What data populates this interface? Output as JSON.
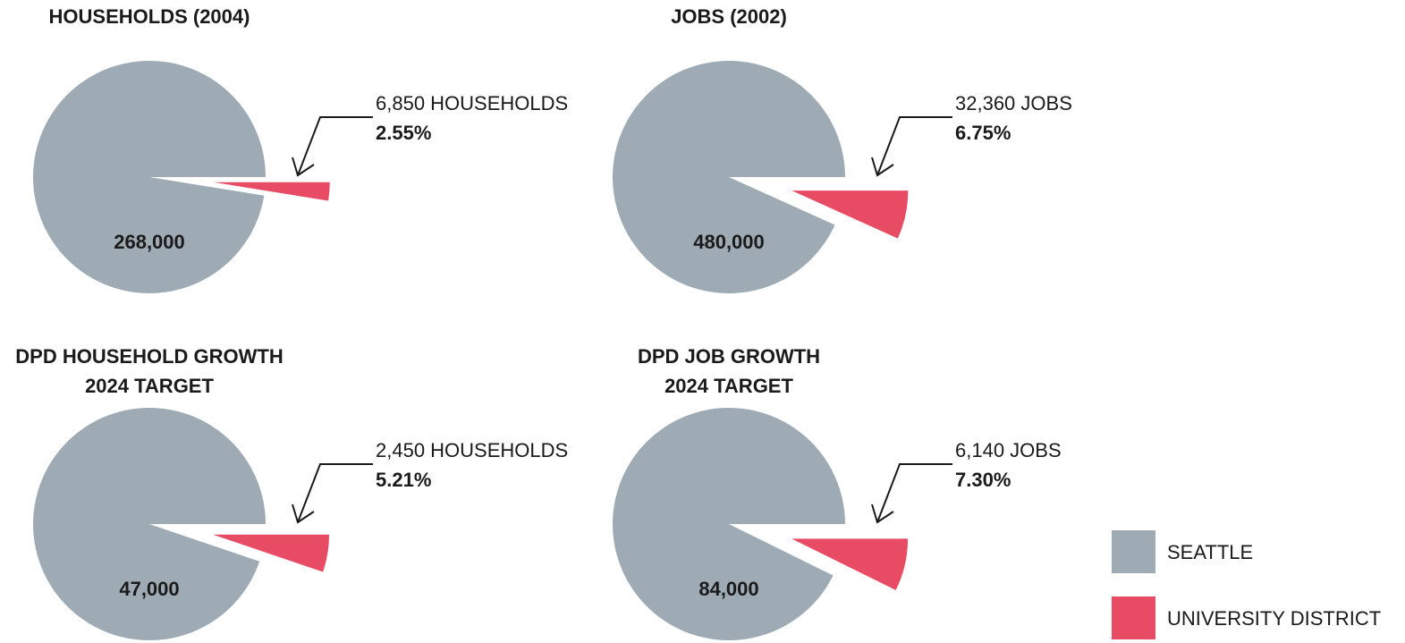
{
  "chart_data": [
    {
      "type": "pie",
      "title": [
        "HOUSEHOLDS (2004)"
      ],
      "categories": [
        "SEATTLE",
        "UNIVERSITY DISTRICT"
      ],
      "colors": [
        "#9eabb4",
        "#e84c64"
      ],
      "values": [
        268000,
        6850
      ],
      "value_labels": [
        "268,000",
        "6,850 HOUSEHOLDS"
      ],
      "share": {
        "value": 2.55,
        "label": "2.55%"
      }
    },
    {
      "type": "pie",
      "title": [
        "JOBS (2002)"
      ],
      "categories": [
        "SEATTLE",
        "UNIVERSITY DISTRICT"
      ],
      "colors": [
        "#9eabb4",
        "#e84c64"
      ],
      "values": [
        480000,
        32360
      ],
      "value_labels": [
        "480,000",
        "32,360 JOBS"
      ],
      "share": {
        "value": 6.75,
        "label": "6.75%"
      }
    },
    {
      "type": "pie",
      "title": [
        "DPD HOUSEHOLD GROWTH",
        "2024 TARGET"
      ],
      "categories": [
        "SEATTLE",
        "UNIVERSITY DISTRICT"
      ],
      "colors": [
        "#9eabb4",
        "#e84c64"
      ],
      "values": [
        47000,
        2450
      ],
      "value_labels": [
        "47,000",
        "2,450 HOUSEHOLDS"
      ],
      "share": {
        "value": 5.21,
        "label": "5.21%"
      }
    },
    {
      "type": "pie",
      "title": [
        "DPD JOB GROWTH",
        "2024 TARGET"
      ],
      "categories": [
        "SEATTLE",
        "UNIVERSITY DISTRICT"
      ],
      "colors": [
        "#9eabb4",
        "#e84c64"
      ],
      "values": [
        84000,
        6140
      ],
      "value_labels": [
        "84,000",
        "6,140 JOBS"
      ],
      "share": {
        "value": 7.3,
        "label": "7.30%"
      }
    }
  ]
}
